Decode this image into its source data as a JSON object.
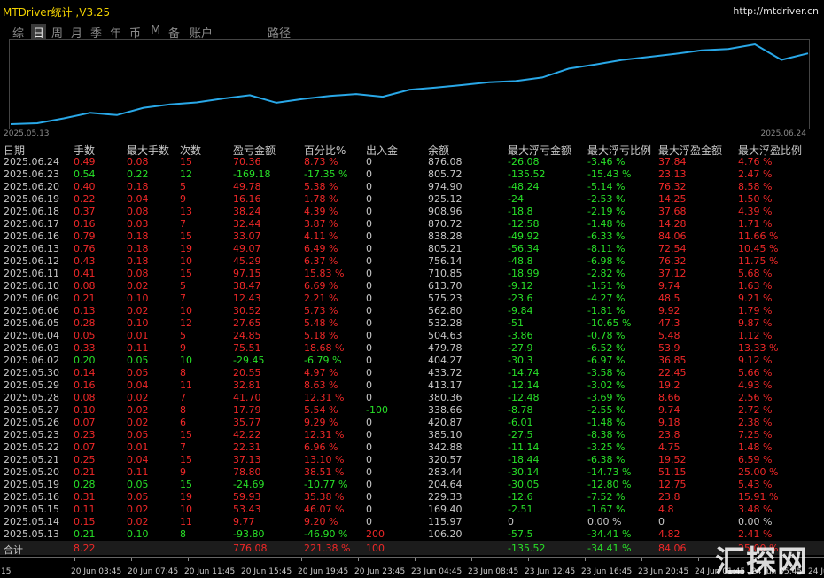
{
  "header": {
    "title": "MTDriver统计 ,V3.25",
    "url": "http://mtdriver.cn"
  },
  "tabs": [
    "综",
    "日",
    "周",
    "月",
    "季",
    "年",
    "币",
    "M",
    "备",
    "账户",
    "路径"
  ],
  "curve": {
    "start_label": "2025.05.13",
    "end_label": "2025.06.24"
  },
  "table": {
    "columns": [
      "日期",
      "手数",
      "最大手数",
      "次数",
      "盈亏金额",
      "百分比%",
      "出入金",
      "余额",
      "最大浮亏金额",
      "最大浮亏比例",
      "最大浮盈金额",
      "最大浮盈比例"
    ],
    "rows": [
      [
        "2025.06.24",
        "0.49",
        "0.08",
        "15",
        "70.36",
        "8.73 %",
        "0",
        "876.08",
        "-26.08",
        "-3.46 %",
        "37.84",
        "4.76 %"
      ],
      [
        "2025.06.23",
        "0.54",
        "0.22",
        "12",
        "-169.18",
        "-17.35 %",
        "0",
        "805.72",
        "-135.52",
        "-15.43 %",
        "23.13",
        "2.47 %"
      ],
      [
        "2025.06.20",
        "0.40",
        "0.18",
        "5",
        "49.78",
        "5.38 %",
        "0",
        "974.90",
        "-48.24",
        "-5.14 %",
        "76.32",
        "8.58 %"
      ],
      [
        "2025.06.19",
        "0.22",
        "0.04",
        "9",
        "16.16",
        "1.78 %",
        "0",
        "925.12",
        "-24",
        "-2.53 %",
        "14.25",
        "1.50 %"
      ],
      [
        "2025.06.18",
        "0.37",
        "0.08",
        "13",
        "38.24",
        "4.39 %",
        "0",
        "908.96",
        "-18.8",
        "-2.19 %",
        "37.68",
        "4.39 %"
      ],
      [
        "2025.06.17",
        "0.16",
        "0.03",
        "7",
        "32.44",
        "3.87 %",
        "0",
        "870.72",
        "-12.58",
        "-1.48 %",
        "14.28",
        "1.71 %"
      ],
      [
        "2025.06.16",
        "0.79",
        "0.18",
        "15",
        "33.07",
        "4.11 %",
        "0",
        "838.28",
        "-49.92",
        "-6.33 %",
        "84.06",
        "11.66 %"
      ],
      [
        "2025.06.13",
        "0.76",
        "0.18",
        "19",
        "49.07",
        "6.49 %",
        "0",
        "805.21",
        "-56.34",
        "-8.11 %",
        "72.54",
        "10.45 %"
      ],
      [
        "2025.06.12",
        "0.43",
        "0.18",
        "10",
        "45.29",
        "6.37 %",
        "0",
        "756.14",
        "-48.8",
        "-6.98 %",
        "76.32",
        "11.75 %"
      ],
      [
        "2025.06.11",
        "0.41",
        "0.08",
        "15",
        "97.15",
        "15.83 %",
        "0",
        "710.85",
        "-18.99",
        "-2.82 %",
        "37.12",
        "5.68 %"
      ],
      [
        "2025.06.10",
        "0.08",
        "0.02",
        "5",
        "38.47",
        "6.69 %",
        "0",
        "613.70",
        "-9.12",
        "-1.51 %",
        "9.74",
        "1.63 %"
      ],
      [
        "2025.06.09",
        "0.21",
        "0.10",
        "7",
        "12.43",
        "2.21 %",
        "0",
        "575.23",
        "-23.6",
        "-4.27 %",
        "48.5",
        "9.21 %"
      ],
      [
        "2025.06.06",
        "0.13",
        "0.02",
        "10",
        "30.52",
        "5.73 %",
        "0",
        "562.80",
        "-9.84",
        "-1.81 %",
        "9.92",
        "1.79 %"
      ],
      [
        "2025.06.05",
        "0.28",
        "0.10",
        "12",
        "27.65",
        "5.48 %",
        "0",
        "532.28",
        "-51",
        "-10.65 %",
        "47.3",
        "9.87 %"
      ],
      [
        "2025.06.04",
        "0.05",
        "0.01",
        "5",
        "24.85",
        "5.18 %",
        "0",
        "504.63",
        "-3.86",
        "-0.78 %",
        "5.48",
        "1.12 %"
      ],
      [
        "2025.06.03",
        "0.33",
        "0.11",
        "9",
        "75.51",
        "18.68 %",
        "0",
        "479.78",
        "-27.9",
        "-6.52 %",
        "53.9",
        "13.33 %"
      ],
      [
        "2025.06.02",
        "0.20",
        "0.05",
        "10",
        "-29.45",
        "-6.79 %",
        "0",
        "404.27",
        "-30.3",
        "-6.97 %",
        "36.85",
        "9.12 %"
      ],
      [
        "2025.05.30",
        "0.14",
        "0.05",
        "8",
        "20.55",
        "4.97 %",
        "0",
        "433.72",
        "-14.74",
        "-3.58 %",
        "22.45",
        "5.66 %"
      ],
      [
        "2025.05.29",
        "0.16",
        "0.04",
        "11",
        "32.81",
        "8.63 %",
        "0",
        "413.17",
        "-12.14",
        "-3.02 %",
        "19.2",
        "4.93 %"
      ],
      [
        "2025.05.28",
        "0.08",
        "0.02",
        "7",
        "41.70",
        "12.31 %",
        "0",
        "380.36",
        "-12.48",
        "-3.69 %",
        "8.66",
        "2.56 %"
      ],
      [
        "2025.05.27",
        "0.10",
        "0.02",
        "8",
        "17.79",
        "5.54 %",
        "-100",
        "338.66",
        "-8.78",
        "-2.55 %",
        "9.74",
        "2.72 %"
      ],
      [
        "2025.05.26",
        "0.07",
        "0.02",
        "6",
        "35.77",
        "9.29 %",
        "0",
        "420.87",
        "-6.01",
        "-1.48 %",
        "9.18",
        "2.38 %"
      ],
      [
        "2025.05.23",
        "0.23",
        "0.05",
        "15",
        "42.22",
        "12.31 %",
        "0",
        "385.10",
        "-27.5",
        "-8.38 %",
        "23.8",
        "7.25 %"
      ],
      [
        "2025.05.22",
        "0.07",
        "0.01",
        "7",
        "22.31",
        "6.96 %",
        "0",
        "342.88",
        "-11.14",
        "-3.25 %",
        "4.75",
        "1.48 %"
      ],
      [
        "2025.05.21",
        "0.25",
        "0.04",
        "15",
        "37.13",
        "13.10 %",
        "0",
        "320.57",
        "-18.44",
        "-6.38 %",
        "19.52",
        "6.59 %"
      ],
      [
        "2025.05.20",
        "0.21",
        "0.11",
        "9",
        "78.80",
        "38.51 %",
        "0",
        "283.44",
        "-30.14",
        "-14.73 %",
        "51.15",
        "25.00 %"
      ],
      [
        "2025.05.19",
        "0.28",
        "0.05",
        "15",
        "-24.69",
        "-10.77 %",
        "0",
        "204.64",
        "-30.05",
        "-12.80 %",
        "12.75",
        "5.43 %"
      ],
      [
        "2025.05.16",
        "0.31",
        "0.05",
        "19",
        "59.93",
        "35.38 %",
        "0",
        "229.33",
        "-12.6",
        "-7.52 %",
        "23.8",
        "15.91 %"
      ],
      [
        "2025.05.15",
        "0.11",
        "0.02",
        "10",
        "53.43",
        "46.07 %",
        "0",
        "169.40",
        "-2.51",
        "-1.67 %",
        "4.8",
        "3.48 %"
      ],
      [
        "2025.05.14",
        "0.15",
        "0.02",
        "11",
        "9.77",
        "9.20 %",
        "0",
        "115.97",
        "0",
        "0.00 %",
        "0",
        "0.00 %"
      ],
      [
        "2025.05.13",
        "0.21",
        "0.10",
        "8",
        "-93.80",
        "-46.90 %",
        "200",
        "106.20",
        "-57.5",
        "-34.41 %",
        "4.82",
        "2.41 %"
      ]
    ],
    "total": [
      "合计",
      "8.22",
      null,
      null,
      "776.08",
      "221.38 %",
      "100",
      null,
      "-135.52",
      "-34.41 %",
      "84.06",
      "25.00 %"
    ]
  },
  "time_axis": [
    "15",
    "20 Jun 03:45",
    "20 Jun 07:45",
    "20 Jun 11:45",
    "20 Jun 15:45",
    "20 Jun 19:45",
    "20 Jun 23:45",
    "23 Jun 04:45",
    "23 Jun 08:45",
    "23 Jun 12:45",
    "23 Jun 16:45",
    "23 Jun 20:45",
    "24 Jun 01:45",
    "24 Jun 05:45",
    "24 Jun 09:45",
    "24"
  ],
  "watermark": "汇探网"
}
